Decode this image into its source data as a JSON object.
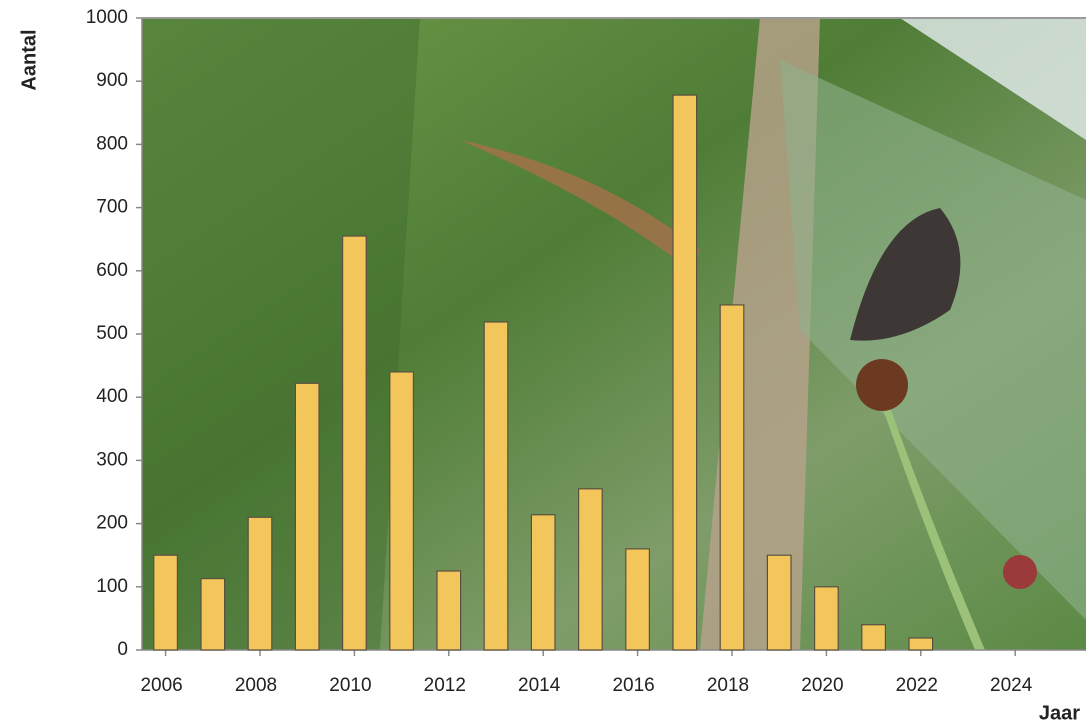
{
  "chart_data": {
    "type": "bar",
    "x": [
      2006,
      2007,
      2008,
      2009,
      2010,
      2011,
      2012,
      2013,
      2014,
      2015,
      2016,
      2017,
      2018,
      2019,
      2020,
      2021,
      2022
    ],
    "values": [
      150,
      113,
      210,
      422,
      655,
      440,
      125,
      519,
      214,
      255,
      160,
      878,
      546,
      150,
      100,
      40,
      19
    ],
    "color": "#f2c65a",
    "xlim": [
      2005.5,
      2025.5
    ],
    "xticks": [
      2006,
      2008,
      2010,
      2012,
      2014,
      2016,
      2018,
      2020,
      2022,
      2024
    ],
    "ylim": [
      0,
      1000
    ],
    "yticks": [
      0,
      100,
      200,
      300,
      400,
      500,
      600,
      700,
      800,
      900,
      1000
    ],
    "x_label": "Jaar",
    "y_label": "Aantal"
  }
}
